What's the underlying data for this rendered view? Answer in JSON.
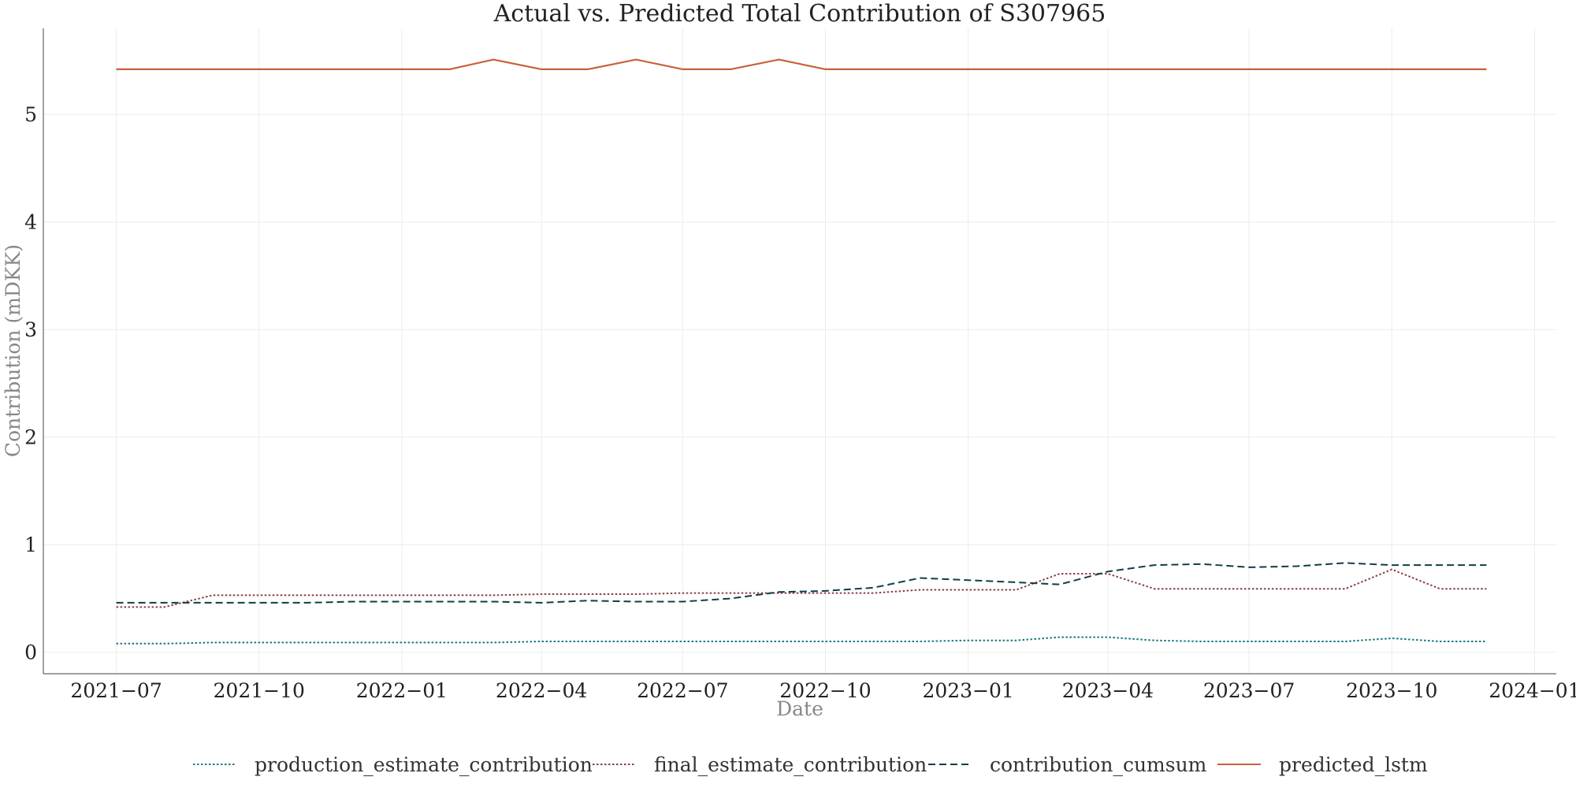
{
  "chart_data": {
    "type": "line",
    "title": "Actual vs. Predicted Total Contribution of S307965",
    "xlabel": "Date",
    "ylabel": "Contribution (mDKK)",
    "x_ticks": [
      "2021−07",
      "2021−10",
      "2022−01",
      "2022−04",
      "2022−07",
      "2022−10",
      "2023−01",
      "2023−04",
      "2023−07",
      "2023−10",
      "2024−01"
    ],
    "y_ticks": [
      "0",
      "1",
      "2",
      "3",
      "4",
      "5"
    ],
    "ylim": [
      -0.2,
      5.8
    ],
    "xlim": [
      "2021-05-15",
      "2024-01-15"
    ],
    "grid": true,
    "legend_position": "bottom",
    "x": [
      "2021-07-01",
      "2021-08-01",
      "2021-09-01",
      "2021-10-01",
      "2021-11-01",
      "2021-12-01",
      "2022-01-01",
      "2022-02-01",
      "2022-03-01",
      "2022-04-01",
      "2022-05-01",
      "2022-06-01",
      "2022-07-01",
      "2022-08-01",
      "2022-09-01",
      "2022-10-01",
      "2022-11-01",
      "2022-12-01",
      "2023-01-01",
      "2023-02-01",
      "2023-03-01",
      "2023-04-01",
      "2023-05-01",
      "2023-06-01",
      "2023-07-01",
      "2023-08-01",
      "2023-09-01",
      "2023-10-01",
      "2023-11-01",
      "2023-12-01"
    ],
    "series": [
      {
        "name": "production_estimate_contribution",
        "color": "#1a7a7a",
        "style": "dotted",
        "values": [
          0.08,
          0.08,
          0.09,
          0.09,
          0.09,
          0.09,
          0.09,
          0.09,
          0.09,
          0.1,
          0.1,
          0.1,
          0.1,
          0.1,
          0.1,
          0.1,
          0.1,
          0.1,
          0.11,
          0.11,
          0.14,
          0.14,
          0.11,
          0.1,
          0.1,
          0.1,
          0.1,
          0.13,
          0.1,
          0.1
        ]
      },
      {
        "name": "final_estimate_contribution",
        "color": "#8a3f4f",
        "style": "dotted",
        "values": [
          0.42,
          0.42,
          0.53,
          0.53,
          0.53,
          0.53,
          0.53,
          0.53,
          0.53,
          0.54,
          0.54,
          0.54,
          0.55,
          0.55,
          0.55,
          0.55,
          0.55,
          0.58,
          0.58,
          0.58,
          0.73,
          0.73,
          0.59,
          0.59,
          0.59,
          0.59,
          0.59,
          0.77,
          0.59,
          0.59
        ]
      },
      {
        "name": "contribution_cumsum",
        "color": "#0e3f45",
        "style": "dashed",
        "values": [
          0.46,
          0.46,
          0.46,
          0.46,
          0.46,
          0.47,
          0.47,
          0.47,
          0.47,
          0.46,
          0.48,
          0.47,
          0.47,
          0.5,
          0.56,
          0.57,
          0.6,
          0.69,
          0.67,
          0.65,
          0.63,
          0.75,
          0.81,
          0.82,
          0.79,
          0.8,
          0.83,
          0.81,
          0.81,
          0.81
        ]
      },
      {
        "name": "predicted_lstm",
        "color": "#c8603a",
        "style": "solid",
        "values": [
          5.42,
          5.42,
          5.42,
          5.42,
          5.42,
          5.42,
          5.42,
          5.42,
          5.51,
          5.42,
          5.42,
          5.51,
          5.42,
          5.42,
          5.51,
          5.42,
          5.42,
          5.42,
          5.42,
          5.42,
          5.42,
          5.42,
          5.42,
          5.42,
          5.42,
          5.42,
          5.42,
          5.42,
          5.42,
          5.42
        ]
      }
    ]
  }
}
